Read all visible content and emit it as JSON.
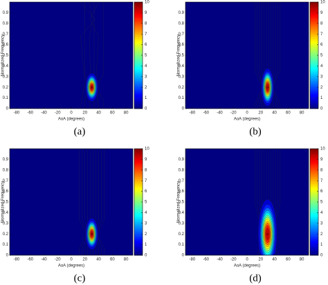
{
  "chart_data": [
    {
      "type": "contour",
      "caption": "(a)",
      "xlabel": "AoA (degrees)",
      "ylabel": "Normalized Frequency",
      "xlim": [
        -90,
        90
      ],
      "xticks": [
        -80,
        -60,
        -40,
        -20,
        0,
        20,
        40,
        60,
        80
      ],
      "ylim": [
        0,
        1
      ],
      "yticks": [
        0,
        0.1,
        0.2,
        0.3,
        0.4,
        0.5,
        0.6,
        0.7,
        0.8,
        0.9
      ],
      "x": [
        30
      ],
      "y": [
        0.2
      ],
      "values": [
        10
      ],
      "colormap": "jet",
      "clim": [
        0,
        10
      ],
      "cticks": [
        0,
        1,
        2,
        3,
        4,
        5,
        6,
        7,
        8,
        9,
        10
      ]
    },
    {
      "type": "contour",
      "caption": "(b)",
      "xlabel": "AoA (degrees)",
      "ylabel": "Normalized Frequency",
      "xlim": [
        -90,
        90
      ],
      "xticks": [
        -80,
        -60,
        -40,
        -20,
        0,
        20,
        40,
        60,
        80
      ],
      "ylim": [
        0,
        1
      ],
      "yticks": [
        0,
        0.1,
        0.2,
        0.3,
        0.4,
        0.5,
        0.6,
        0.7,
        0.8,
        0.9
      ],
      "x": [
        30
      ],
      "y": [
        0.2
      ],
      "values": [
        10
      ],
      "colormap": "jet",
      "clim": [
        0,
        10
      ],
      "cticks": [
        0,
        1,
        2,
        3,
        4,
        5,
        6,
        7,
        8,
        9,
        10
      ]
    },
    {
      "type": "contour",
      "caption": "(c)",
      "xlabel": "AoA (degrees)",
      "ylabel": "Normalized Frequency",
      "xlim": [
        -90,
        90
      ],
      "xticks": [
        -80,
        -60,
        -40,
        -20,
        0,
        20,
        40,
        60,
        80
      ],
      "ylim": [
        0,
        1
      ],
      "yticks": [
        0,
        0.1,
        0.2,
        0.3,
        0.4,
        0.5,
        0.6,
        0.7,
        0.8,
        0.9
      ],
      "x": [
        30
      ],
      "y": [
        0.2
      ],
      "values": [
        10
      ],
      "colormap": "jet",
      "clim": [
        0,
        10
      ],
      "cticks": [
        0,
        1,
        2,
        3,
        4,
        5,
        6,
        7,
        8,
        9,
        10
      ]
    },
    {
      "type": "contour",
      "caption": "(d)",
      "xlabel": "AoA (degrees)",
      "ylabel": "Normalized Frequency",
      "xlim": [
        -90,
        90
      ],
      "xticks": [
        -80,
        -60,
        -40,
        -20,
        0,
        20,
        40,
        60,
        80
      ],
      "ylim": [
        0,
        1
      ],
      "yticks": [
        0,
        0.1,
        0.2,
        0.3,
        0.4,
        0.5,
        0.6,
        0.7,
        0.8,
        0.9
      ],
      "x": [
        30
      ],
      "y": [
        0.2
      ],
      "values": [
        10
      ],
      "colormap": "jet",
      "clim": [
        0,
        10
      ],
      "cticks": [
        0,
        1,
        2,
        3,
        4,
        5,
        6,
        7,
        8,
        9,
        10
      ]
    }
  ]
}
